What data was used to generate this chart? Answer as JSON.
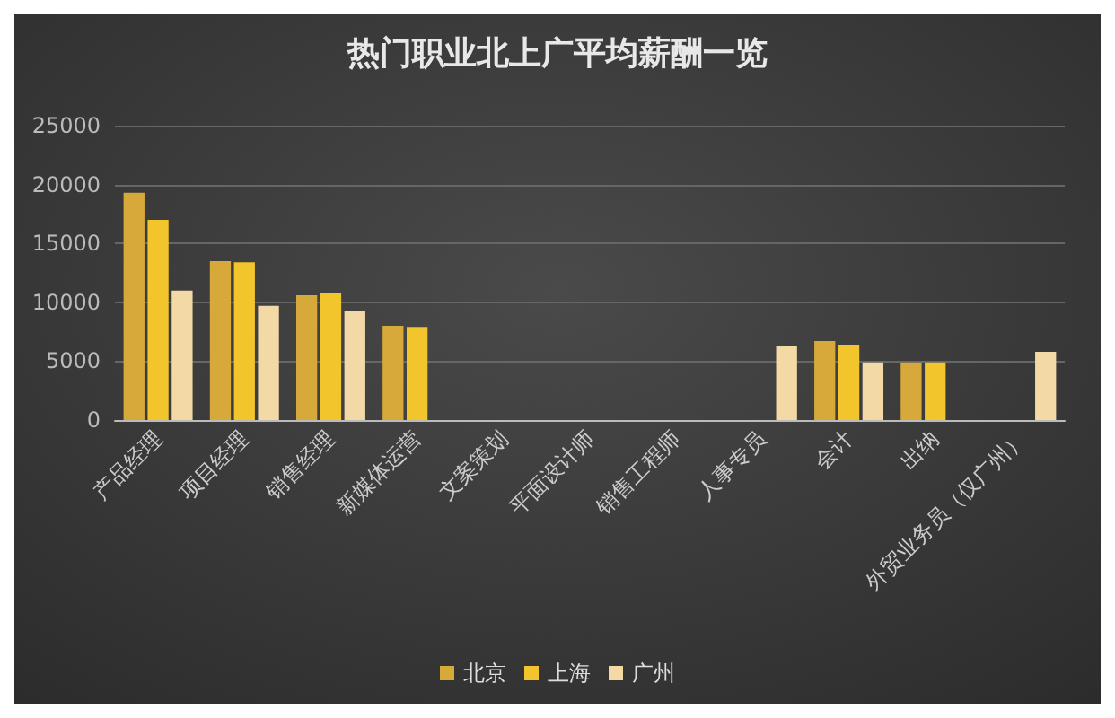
{
  "chart_data": {
    "type": "bar",
    "title": "热门职业北上广平均薪酬一览",
    "categories": [
      "产品经理",
      "项目经理",
      "销售经理",
      "新媒体运营",
      "文案策划",
      "平面设计师",
      "销售工程师",
      "人事专员",
      "会计",
      "出纳",
      "外贸业务员（仅广州）"
    ],
    "series": [
      {
        "name": "北京",
        "color": "#d6a93a",
        "values": [
          19300,
          13500,
          10600,
          8000,
          null,
          null,
          null,
          null,
          6700,
          4900,
          null
        ]
      },
      {
        "name": "上海",
        "color": "#f2c52c",
        "values": [
          17000,
          13400,
          10800,
          7900,
          null,
          null,
          null,
          null,
          6400,
          4900,
          null
        ]
      },
      {
        "name": "广州",
        "color": "#f3d9a6",
        "values": [
          11000,
          9700,
          9300,
          null,
          null,
          null,
          null,
          6300,
          4900,
          null,
          5800
        ]
      }
    ],
    "ylim": [
      0,
      25000
    ],
    "yticks": [
      0,
      5000,
      10000,
      15000,
      20000,
      25000
    ],
    "grid": "y",
    "legend": "bottom"
  }
}
